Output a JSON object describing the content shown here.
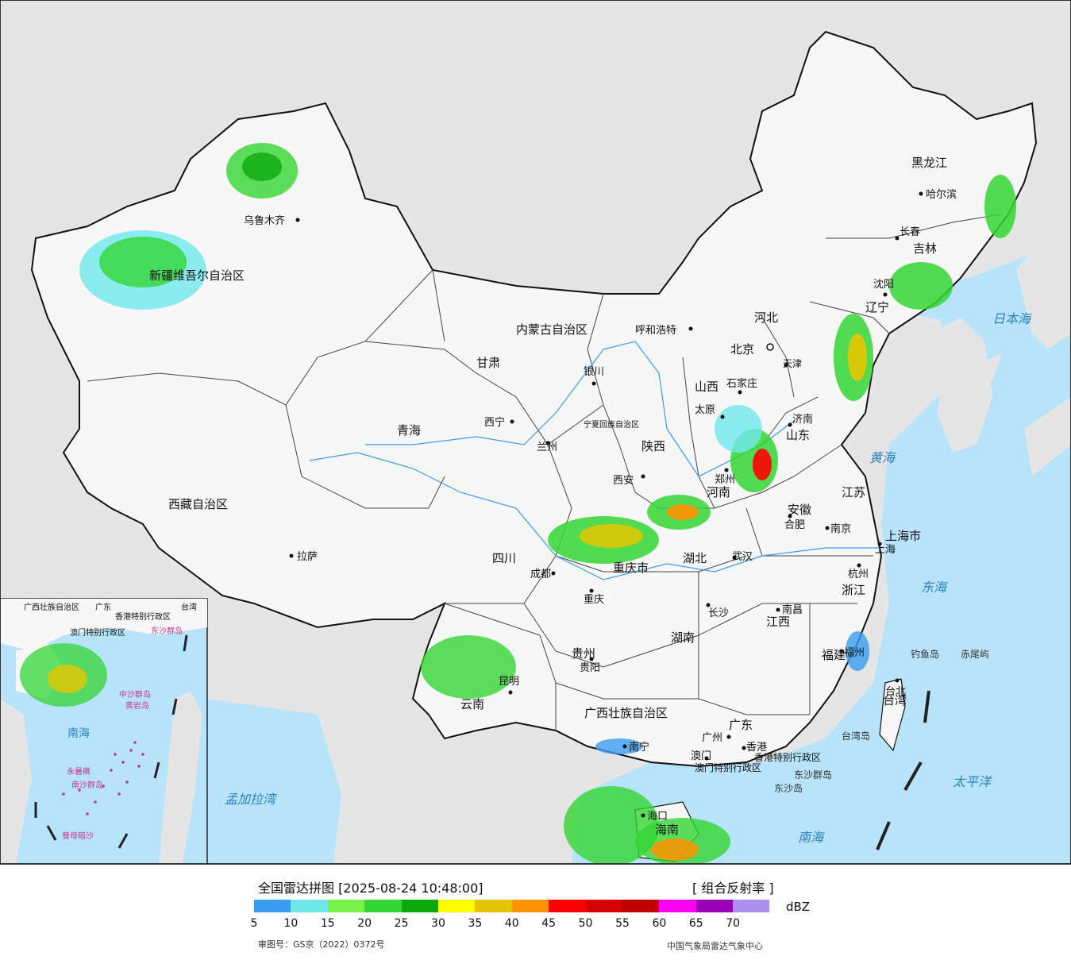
{
  "legend": {
    "title": "全国雷达拼图 [2025-08-24 10:48:00]",
    "product": "[ 组合反射率 ]",
    "unit": "dBZ",
    "ticks": [
      "5",
      "10",
      "15",
      "20",
      "25",
      "30",
      "35",
      "40",
      "45",
      "50",
      "55",
      "60",
      "65",
      "70"
    ],
    "colors": [
      "#3a9cf0",
      "#6fe8ec",
      "#77f24a",
      "#33d633",
      "#0ca90c",
      "#ffff00",
      "#e5c500",
      "#ff9200",
      "#ff0000",
      "#d80000",
      "#c00000",
      "#ff00f0",
      "#9800b8",
      "#ac8fef"
    ],
    "approval": "审图号：GS京（2022）0372号",
    "org": "中国气象局雷达气象中心"
  },
  "map": {
    "colors": {
      "sea": "#b7e3fb",
      "land_out": "#e5e5e5",
      "land_cn": "#f7f7f7",
      "border": "#111111",
      "rain_blue": "#3a9cf0",
      "rain_cyan": "#6fe8ec",
      "rain_green": "#33d633",
      "rain_yellow": "#e5c500",
      "rain_red": "#ff0000"
    },
    "provinces": [
      {
        "name": "新疆维吾尔自治区"
      },
      {
        "name": "西藏自治区"
      },
      {
        "name": "青海"
      },
      {
        "name": "甘肃"
      },
      {
        "name": "内蒙古自治区"
      },
      {
        "name": "四川"
      },
      {
        "name": "云南"
      },
      {
        "name": "贵州"
      },
      {
        "name": "广西壮族自治区"
      },
      {
        "name": "广东"
      },
      {
        "name": "湖南"
      },
      {
        "name": "湖北"
      },
      {
        "name": "江西"
      },
      {
        "name": "福建"
      },
      {
        "name": "浙江"
      },
      {
        "name": "江苏"
      },
      {
        "name": "安徽"
      },
      {
        "name": "河南"
      },
      {
        "name": "山东"
      },
      {
        "name": "河北"
      },
      {
        "name": "山西"
      },
      {
        "name": "陕西"
      },
      {
        "name": "宁夏回族自治区"
      },
      {
        "name": "辽宁"
      },
      {
        "name": "吉林"
      },
      {
        "name": "黑龙江"
      },
      {
        "name": "重庆市"
      },
      {
        "name": "海南"
      },
      {
        "name": "上海市"
      },
      {
        "name": "天津"
      },
      {
        "name": "北京"
      },
      {
        "name": "台湾"
      },
      {
        "name": "香港特别行政区"
      },
      {
        "name": "澳门特别行政区"
      }
    ],
    "cities": [
      "乌鲁木齐",
      "拉萨",
      "西宁",
      "兰州",
      "银川",
      "呼和浩特",
      "北京",
      "天津",
      "石家庄",
      "太原",
      "济南",
      "郑州",
      "西安",
      "成都",
      "重庆",
      "武汉",
      "合肥",
      "南京",
      "上海",
      "杭州",
      "南昌",
      "长沙",
      "贵阳",
      "昆明",
      "南宁",
      "广州",
      "香港",
      "澳门",
      "福州",
      "台北",
      "海口",
      "沈阳",
      "长春",
      "哈尔滨"
    ],
    "seas": [
      "日本海",
      "黄海",
      "东海",
      "太平洋",
      "南海",
      "孟加拉湾"
    ],
    "islands": [
      "钓鱼岛",
      "赤尾屿",
      "台湾岛",
      "东沙群岛",
      "东沙岛"
    ],
    "inset": {
      "labels": [
        "广西壮族自治区",
        "广东",
        "香港特别行政区",
        "澳门特别行政区",
        "台湾",
        "东沙群岛",
        "中沙群岛",
        "黄岩岛",
        "南海",
        "永暑礁",
        "南沙群岛",
        "曾母暗沙"
      ]
    }
  }
}
